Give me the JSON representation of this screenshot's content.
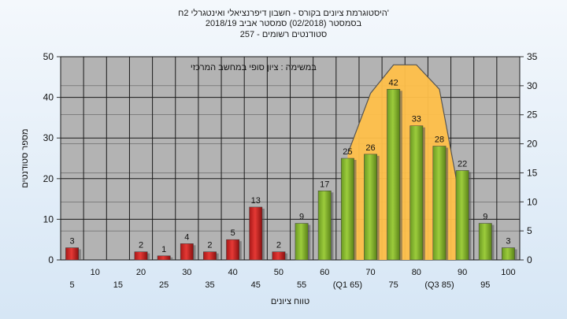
{
  "title_lines": [
    "'היסטוגרמת ציונים בקורס - חשבון דיפרנציאלי ואינטגרלי 2ח",
    "בסמסטר  (02/2018)  סמסטר אביב 2018/19",
    "סטודנטים רשומים - 257"
  ],
  "colors": {
    "red_bar": "#e53935",
    "green_bar": "#9ccc3c",
    "band_fill": "#ffc04a",
    "plot_bg": "#b3b3b3",
    "grid": "#1a1a1a"
  },
  "chart_data": {
    "type": "bar",
    "annotation": "במשימה : ציון סופי במחשב המרכזי",
    "xlabel": "טווח ציונים",
    "ylabel": "מספר סטודנטים",
    "ylim_left": [
      0,
      50
    ],
    "yticks_left": [
      "0",
      "10",
      "20",
      "30",
      "40",
      "50"
    ],
    "ylim_right": [
      0,
      35
    ],
    "yticks_right": [
      "0",
      "5",
      "10",
      "15",
      "20",
      "25",
      "30",
      "35"
    ],
    "grid": true,
    "categories": [
      5,
      10,
      15,
      20,
      25,
      30,
      35,
      40,
      45,
      50,
      55,
      60,
      65,
      70,
      75,
      80,
      85,
      90,
      95,
      100
    ],
    "values": [
      3,
      0,
      0,
      2,
      1,
      4,
      2,
      5,
      13,
      2,
      9,
      17,
      25,
      26,
      42,
      33,
      28,
      22,
      9,
      3
    ],
    "value_labels": [
      "3",
      "",
      "",
      "2",
      "1",
      "4",
      "2",
      "5",
      "13",
      "2",
      "9",
      "17",
      "25",
      "26",
      "42",
      "33",
      "28",
      "22",
      "9",
      "3"
    ],
    "bar_colors": [
      "red",
      "red",
      "red",
      "red",
      "red",
      "red",
      "red",
      "red",
      "red",
      "red",
      "green",
      "green",
      "green",
      "green",
      "green",
      "green",
      "green",
      "green",
      "green",
      "green"
    ],
    "x_tick_labels": [
      "5",
      "10",
      "15",
      "20",
      "25",
      "30",
      "35",
      "40",
      "45",
      "50",
      "55",
      "60",
      "(Q1 65)",
      "70",
      "75",
      "80",
      "(Q3 85)",
      "90",
      "95",
      "100"
    ],
    "band_curve": {
      "x": [
        65,
        70,
        75,
        80,
        85,
        90
      ],
      "y": [
        26,
        41,
        48,
        48,
        42,
        12
      ]
    }
  }
}
